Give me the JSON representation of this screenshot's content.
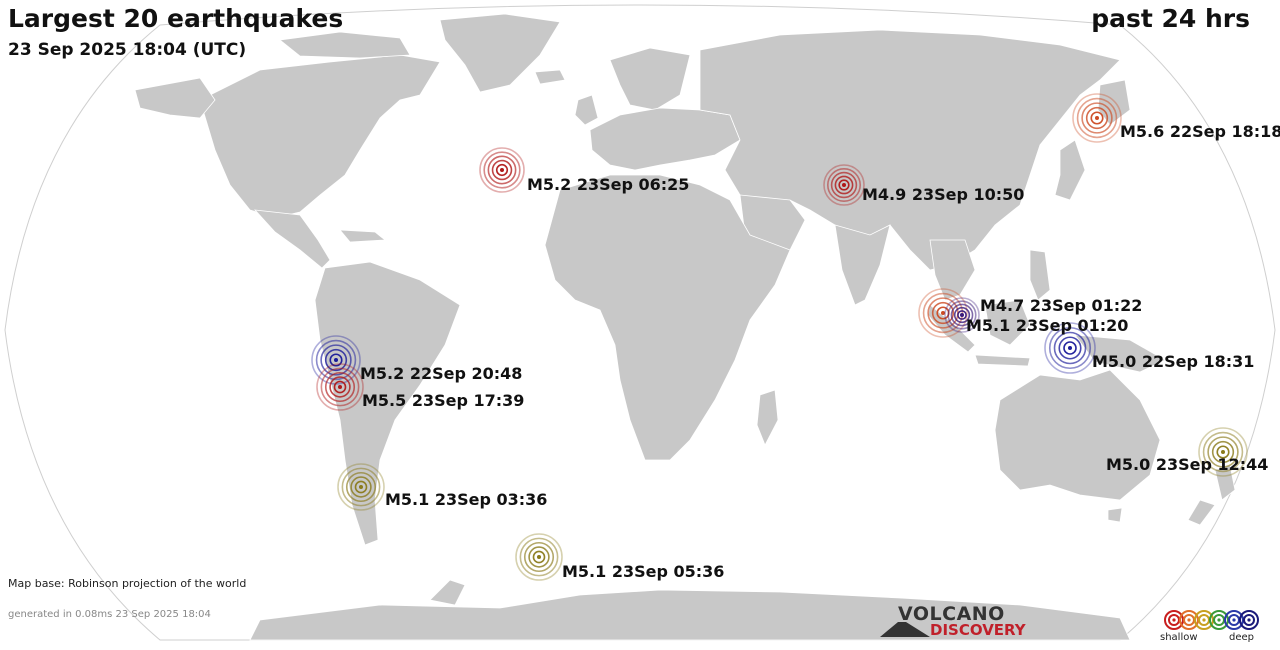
{
  "header": {
    "title": "Largest 20 earthquakes",
    "timestamp": "23 Sep 2025 18:04 (UTC)",
    "period": "past 24 hrs"
  },
  "earthquakes": [
    {
      "label": "M5.6 22Sep 18:18",
      "depth_class": "shallow-orange"
    },
    {
      "label": "M5.2 23Sep 06:25",
      "depth_class": "shallow-red"
    },
    {
      "label": "M4.9 23Sep 10:50",
      "depth_class": "shallow-red"
    },
    {
      "label": "M4.7 23Sep 01:22",
      "depth_class": "shallow-orange"
    },
    {
      "label": "M5.1 23Sep 01:20",
      "depth_class": "deep-purple"
    },
    {
      "label": "M5.0 22Sep 18:31",
      "depth_class": "deep-blue"
    },
    {
      "label": "M5.2 22Sep 20:48",
      "depth_class": "deep-blue"
    },
    {
      "label": "M5.5 23Sep 17:39",
      "depth_class": "shallow-red"
    },
    {
      "label": "M5.1 23Sep 03:36",
      "depth_class": "intermediate-olive"
    },
    {
      "label": "M5.1 23Sep 05:36",
      "depth_class": "intermediate-olive"
    },
    {
      "label": "M5.0 23Sep 12:44",
      "depth_class": "intermediate-olive"
    }
  ],
  "colors": {
    "shallow-red": "#b01818",
    "shallow-orange": "#cc4a22",
    "intermediate-olive": "#8a7a1a",
    "deep-purple": "#3a1a7a",
    "deep-blue": "#1a1a9a",
    "land": "#c8c8c8",
    "ocean": "#ffffff"
  },
  "footer": {
    "map_note": "Map base: Robinson projection of the world",
    "generated": "generated in 0.08ms 23 Sep 2025 18:04"
  },
  "logo": {
    "line1": "VOLCANO",
    "line2": "DISCOVERY"
  },
  "legend": {
    "shallow_label": "shallow",
    "deep_label": "deep",
    "colors": [
      "#c81e1e",
      "#e0702a",
      "#c8a020",
      "#3a9a3a",
      "#2a3aa8",
      "#1a1a7a"
    ]
  }
}
